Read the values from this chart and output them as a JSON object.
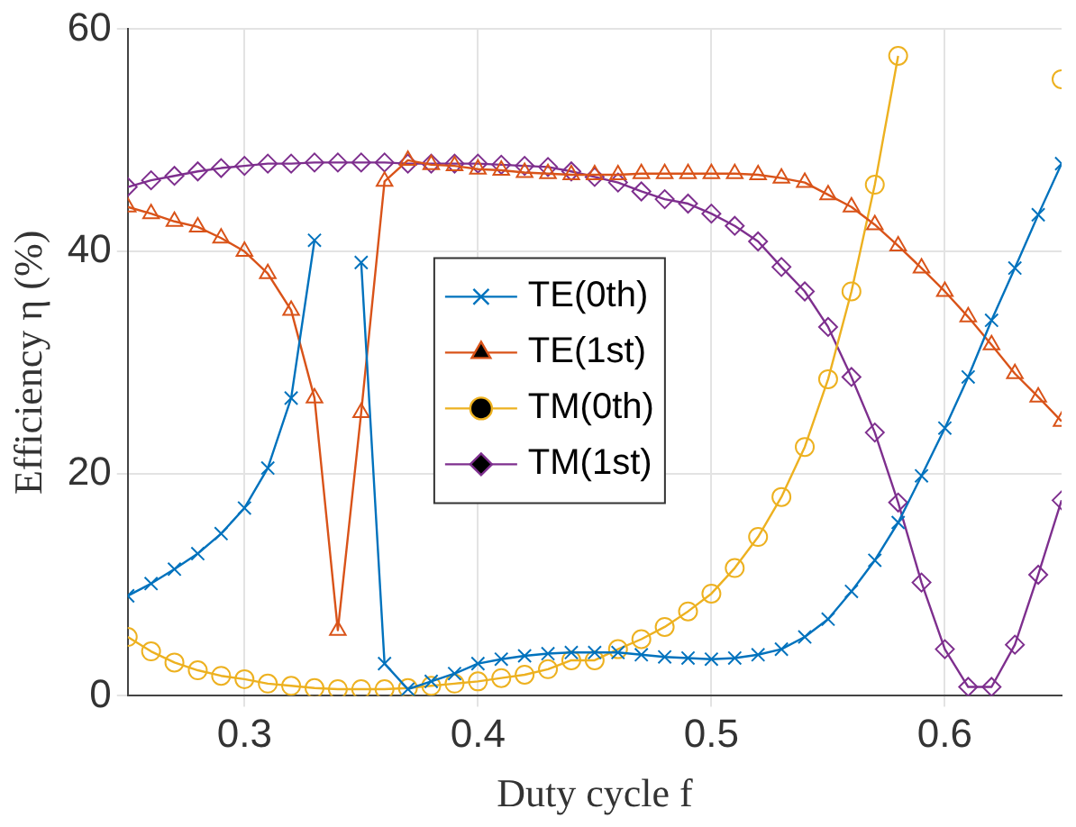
{
  "chart_data": {
    "type": "line",
    "xlabel": "Duty cycle f",
    "ylabel": "Efficiency η (%)",
    "x": [
      0.25,
      0.26,
      0.27,
      0.28,
      0.29,
      0.3,
      0.31,
      0.32,
      0.33,
      0.34,
      0.35,
      0.36,
      0.37,
      0.38,
      0.39,
      0.4,
      0.41,
      0.42,
      0.43,
      0.44,
      0.45,
      0.46,
      0.47,
      0.48,
      0.49,
      0.5,
      0.51,
      0.52,
      0.53,
      0.54,
      0.55,
      0.56,
      0.57,
      0.58,
      0.59,
      0.6,
      0.61,
      0.62,
      0.63,
      0.64,
      0.65
    ],
    "xlim": [
      0.25,
      0.65
    ],
    "xticks": [
      0.3,
      0.4,
      0.5,
      0.6
    ],
    "ylim": [
      0,
      60
    ],
    "yticks": [
      0,
      20,
      40,
      60
    ],
    "grid": true,
    "legend": "center",
    "series": [
      {
        "name": "TE(0th)",
        "color": "#0072bd",
        "marker": "cross",
        "values": [
          9.0,
          10.1,
          11.4,
          12.8,
          14.6,
          16.9,
          20.5,
          26.8,
          41.0,
          null,
          39.0,
          2.9,
          0.6,
          1.3,
          2.0,
          2.9,
          3.3,
          3.6,
          3.8,
          3.9,
          3.9,
          3.9,
          3.7,
          3.5,
          3.4,
          3.3,
          3.4,
          3.7,
          4.2,
          5.3,
          6.9,
          9.4,
          12.2,
          15.6,
          19.8,
          24.1,
          28.7,
          33.8,
          38.5,
          43.3,
          47.9
        ]
      },
      {
        "name": "TE(1st)",
        "color": "#d95319",
        "marker": "triangle",
        "values": [
          44.0,
          43.4,
          42.7,
          42.2,
          41.2,
          40.0,
          38.0,
          34.7,
          26.8,
          5.9,
          25.5,
          46.3,
          48.2,
          47.8,
          47.7,
          47.4,
          47.3,
          47.1,
          47.0,
          46.9,
          46.9,
          46.9,
          47.0,
          47.0,
          47.0,
          47.0,
          47.0,
          46.9,
          46.6,
          46.2,
          45.1,
          44.0,
          42.4,
          40.5,
          38.5,
          36.4,
          34.1,
          31.6,
          29.0,
          26.9,
          24.7
        ]
      },
      {
        "name": "TM(0th)",
        "color": "#edb120",
        "marker": "circle",
        "values": [
          5.3,
          4.0,
          3.0,
          2.3,
          1.8,
          1.5,
          1.1,
          0.9,
          0.7,
          0.6,
          0.6,
          0.6,
          0.7,
          0.9,
          1.1,
          1.3,
          1.6,
          1.9,
          2.4,
          3.2,
          3.2,
          4.2,
          5.1,
          6.2,
          7.6,
          9.2,
          11.5,
          14.3,
          17.9,
          22.4,
          28.5,
          36.4,
          46.0,
          57.6,
          null,
          null,
          null,
          null,
          null,
          null,
          55.5
        ]
      },
      {
        "name": "TM(1st)",
        "color": "#7e2f8e",
        "marker": "diamond",
        "values": [
          45.8,
          46.4,
          46.8,
          47.2,
          47.5,
          47.7,
          47.9,
          47.9,
          48.0,
          48.0,
          48.0,
          48.0,
          47.9,
          47.9,
          47.9,
          47.9,
          47.8,
          47.7,
          47.6,
          47.2,
          46.7,
          46.2,
          45.4,
          44.7,
          44.3,
          43.4,
          42.3,
          40.9,
          38.6,
          36.4,
          33.2,
          28.7,
          23.7,
          17.4,
          10.2,
          4.2,
          0.8,
          0.8,
          4.6,
          10.9,
          17.6
        ]
      }
    ]
  }
}
